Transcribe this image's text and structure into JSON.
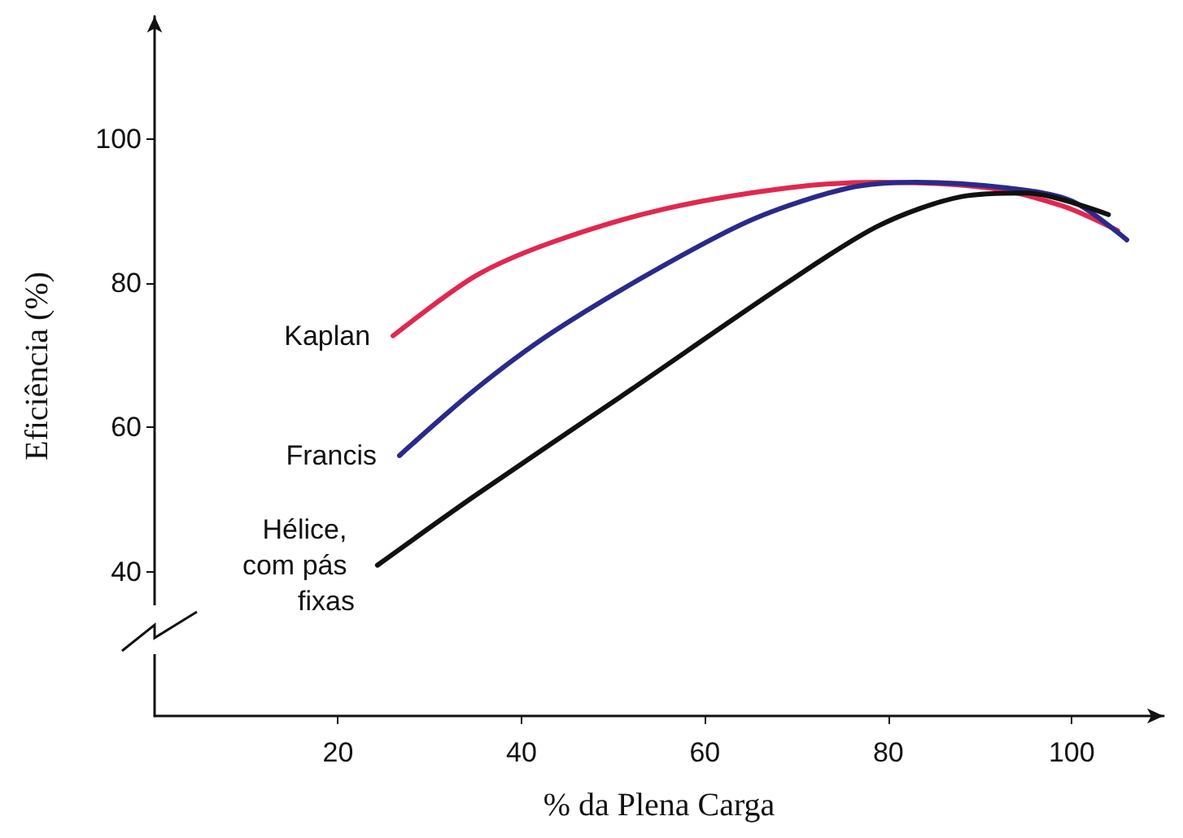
{
  "chart_data": {
    "type": "line",
    "xlabel": "% da Plena Carga",
    "ylabel": "Eficiência (%)",
    "xlim": [
      0,
      110
    ],
    "xticks": [
      20,
      40,
      60,
      80,
      100
    ],
    "ylim": [
      20,
      117
    ],
    "yticks": [
      40,
      60,
      80,
      100
    ],
    "grid": false,
    "legend": false,
    "marker": "none",
    "line_style": "solid",
    "series": [
      {
        "name": "Kaplan",
        "color": "#e0284f",
        "x": [
          26,
          35,
          43.4,
          55.3,
          69,
          79,
          91,
          99,
          105
        ],
        "values": [
          72.7,
          81,
          85.7,
          90.2,
          93.2,
          94,
          93.2,
          90.7,
          87.3
        ]
      },
      {
        "name": "Francis",
        "color": "#2a2a8a",
        "x": [
          26.7,
          34.9,
          43.4,
          55.3,
          65.5,
          75.7,
          83,
          93,
          100,
          106
        ],
        "values": [
          56.1,
          65.2,
          73.2,
          82.3,
          89,
          93.2,
          94,
          93.2,
          91.4,
          86
        ]
      },
      {
        "name": "Hélice, com pás fixas",
        "color": "#111111",
        "x": [
          24.3,
          34.9,
          51.9,
          68.9,
          79,
          88,
          95,
          104
        ],
        "values": [
          40.9,
          50.5,
          65.2,
          80,
          88,
          92,
          92.5,
          89.5
        ]
      }
    ]
  }
}
